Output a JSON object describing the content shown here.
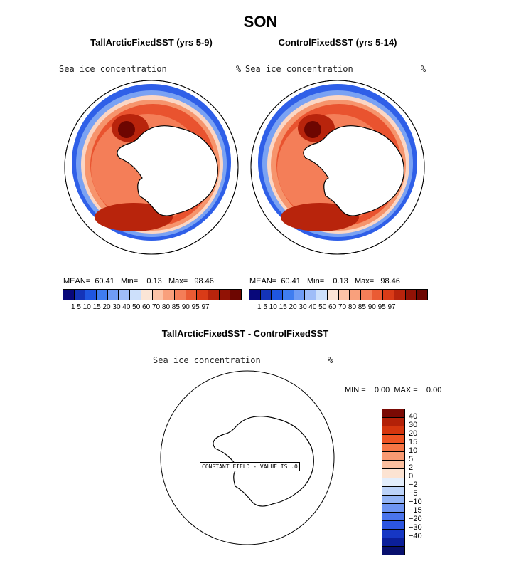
{
  "title": "SON",
  "panels": [
    {
      "title": "TallArcticFixedSST (yrs 5-9)",
      "variable": "Sea ice concentration",
      "unit": "%",
      "stats": "MEAN=  60.41   Min=    0.13   Max=   98.46"
    },
    {
      "title": "ControlFixedSST (yrs 5-14)",
      "variable": "Sea ice concentration",
      "unit": "%",
      "stats": "MEAN=  60.41   Min=    0.13   Max=   98.46"
    }
  ],
  "colorbar_top": {
    "colors": [
      "#08087a",
      "#1434b8",
      "#1f56e0",
      "#3f7df0",
      "#6f9cf5",
      "#9fbdf8",
      "#cde0fb",
      "#fbe5d6",
      "#fcc3a6",
      "#f9a07c",
      "#f47e58",
      "#ea5b34",
      "#d93b17",
      "#b8240c",
      "#911205",
      "#6d0601"
    ],
    "ticks": "1  5  10 15 20 30 40 50 60 70 80 85 90 95 97"
  },
  "diff_panel": {
    "title": "TallArcticFixedSST - ControlFixedSST",
    "variable": "Sea ice concentration",
    "unit": "%",
    "stats": "MIN =    0.00  MAX =    0.00",
    "constant_label": "CONSTANT FIELD - VALUE IS .0"
  },
  "colorbar_diff": {
    "colors": [
      "#7a0a04",
      "#b32108",
      "#d5360e",
      "#ee5322",
      "#f77645",
      "#f99a72",
      "#fbbf9f",
      "#fce3d2",
      "#e3eefc",
      "#bcd3f9",
      "#94b5f6",
      "#6e95f2",
      "#4a74ec",
      "#2c55e0",
      "#1637c4",
      "#0b1f9a",
      "#08106e"
    ],
    "ticks": [
      "40",
      "30",
      "20",
      "15",
      "10",
      "5",
      "2",
      "0",
      "−2",
      "−5",
      "−10",
      "−15",
      "−20",
      "−30",
      "−40"
    ]
  }
}
